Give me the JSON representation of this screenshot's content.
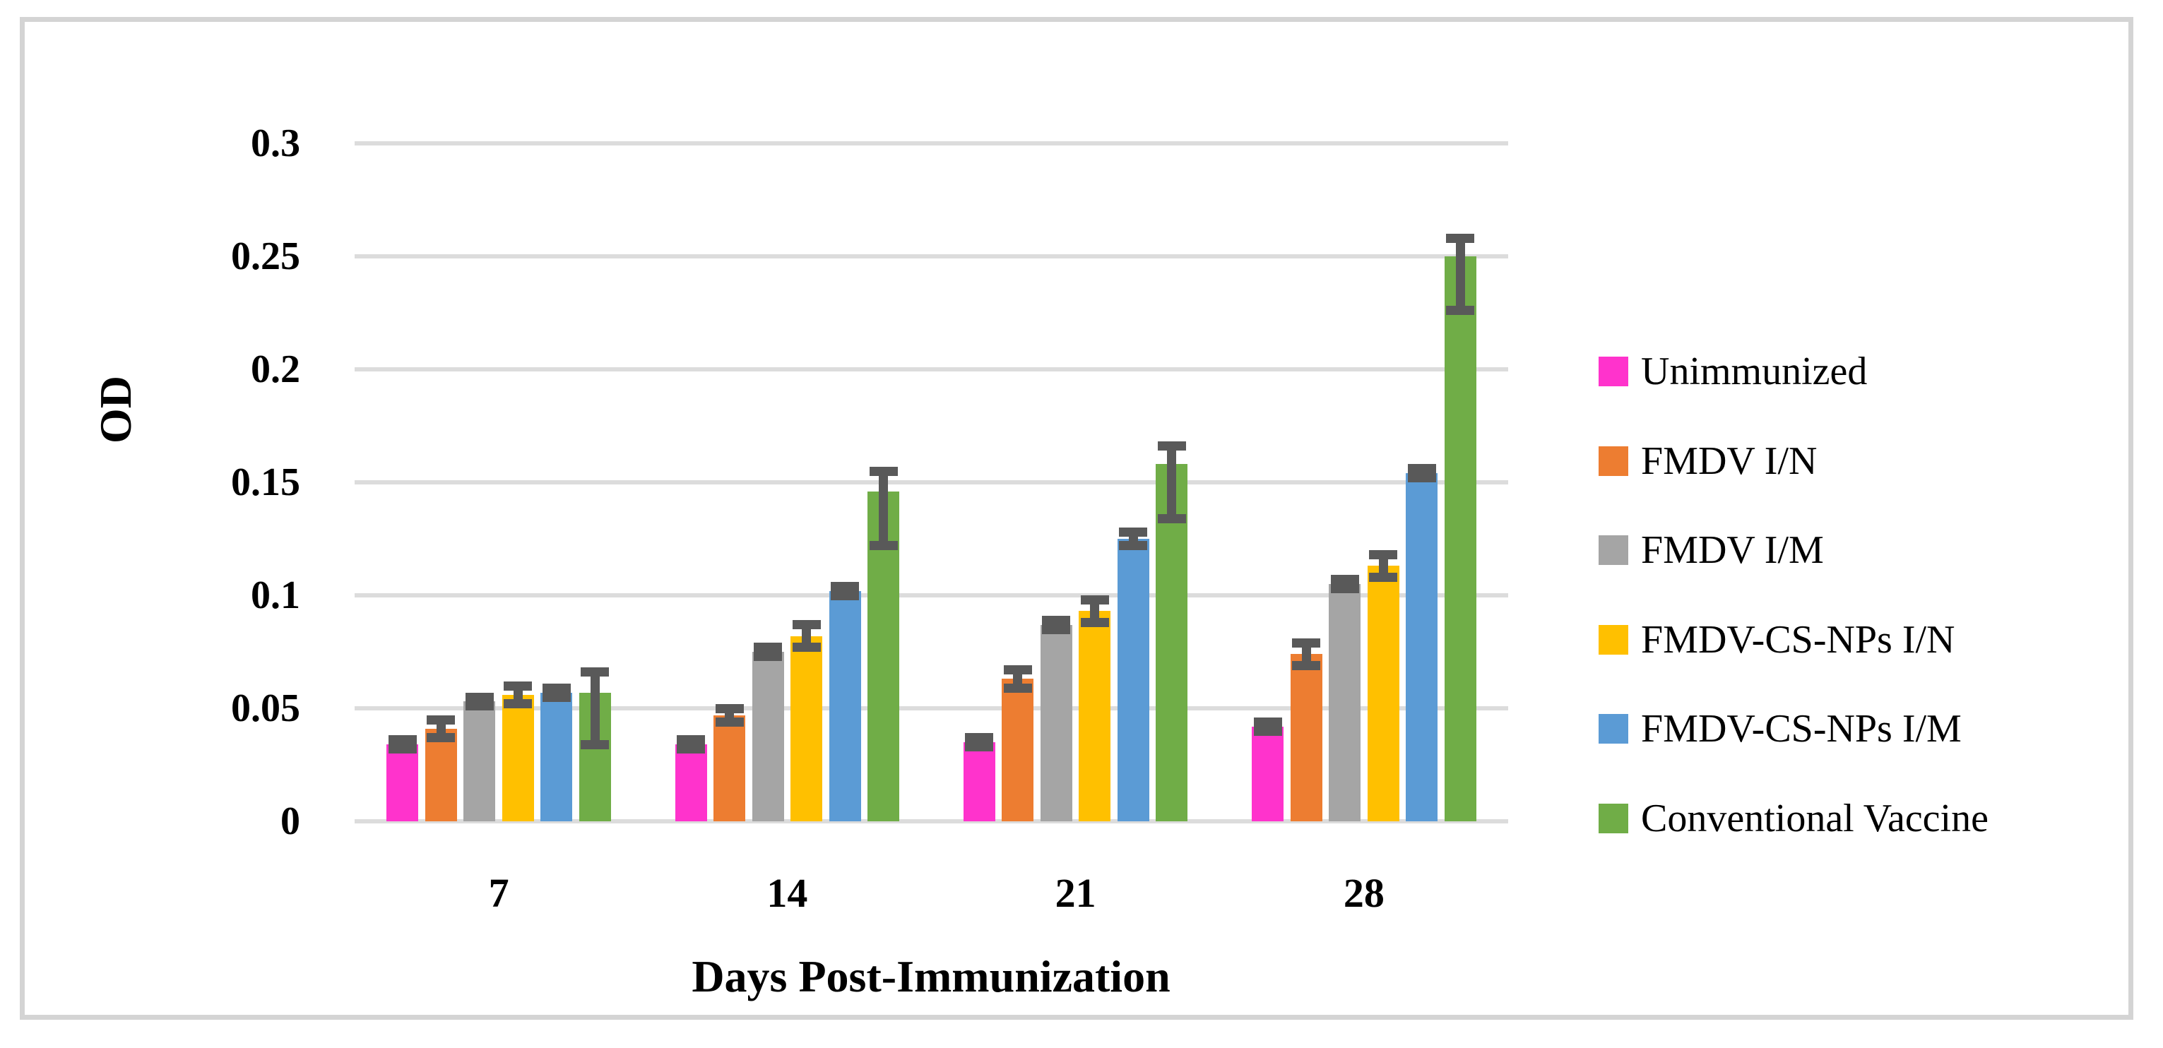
{
  "chart_data": {
    "type": "bar",
    "title": "",
    "xlabel": "Days Post-Immunization",
    "ylabel": "OD",
    "categories": [
      "7",
      "14",
      "21",
      "28"
    ],
    "yticks": [
      "0",
      "0.05",
      "0.1",
      "0.15",
      "0.2",
      "0.25",
      "0.3"
    ],
    "ylim": [
      0,
      0.3
    ],
    "grid": true,
    "legend_position": "right",
    "gridline_color": "#dcdcdc",
    "frame_color": "#d4d4d4",
    "error_bar_color": "#595959",
    "series": [
      {
        "name": "Unimmunized",
        "color": "#FF33CC",
        "values": [
          0.034,
          0.034,
          0.035,
          0.042
        ],
        "err_up": [
          0.002,
          0.002,
          0.002,
          0.002
        ],
        "err_down": [
          0.002,
          0.002,
          0.002,
          0.002
        ]
      },
      {
        "name": "FMDV I/N",
        "color": "#ED7D31",
        "values": [
          0.041,
          0.047,
          0.063,
          0.074
        ],
        "err_up": [
          0.004,
          0.003,
          0.004,
          0.005
        ],
        "err_down": [
          0.004,
          0.003,
          0.004,
          0.005
        ]
      },
      {
        "name": "FMDV I/M",
        "color": "#A5A5A5",
        "values": [
          0.053,
          0.075,
          0.087,
          0.105
        ],
        "err_up": [
          0.002,
          0.002,
          0.002,
          0.002
        ],
        "err_down": [
          0.002,
          0.002,
          0.002,
          0.002
        ]
      },
      {
        "name": "FMDV-CS-NPs I/N",
        "color": "#FFC000",
        "values": [
          0.056,
          0.082,
          0.093,
          0.113
        ],
        "err_up": [
          0.004,
          0.005,
          0.005,
          0.005
        ],
        "err_down": [
          0.004,
          0.005,
          0.005,
          0.005
        ]
      },
      {
        "name": "FMDV-CS-NPs I/M",
        "color": "#5B9BD5",
        "values": [
          0.057,
          0.102,
          0.125,
          0.154
        ],
        "err_up": [
          0.002,
          0.002,
          0.003,
          0.002
        ],
        "err_down": [
          0.002,
          0.002,
          0.003,
          0.002
        ]
      },
      {
        "name": "Conventional Vaccine",
        "color": "#70AD47",
        "values": [
          0.057,
          0.146,
          0.158,
          0.25
        ],
        "err_up": [
          0.009,
          0.009,
          0.008,
          0.008
        ],
        "err_down": [
          0.023,
          0.024,
          0.024,
          0.024
        ]
      }
    ]
  }
}
